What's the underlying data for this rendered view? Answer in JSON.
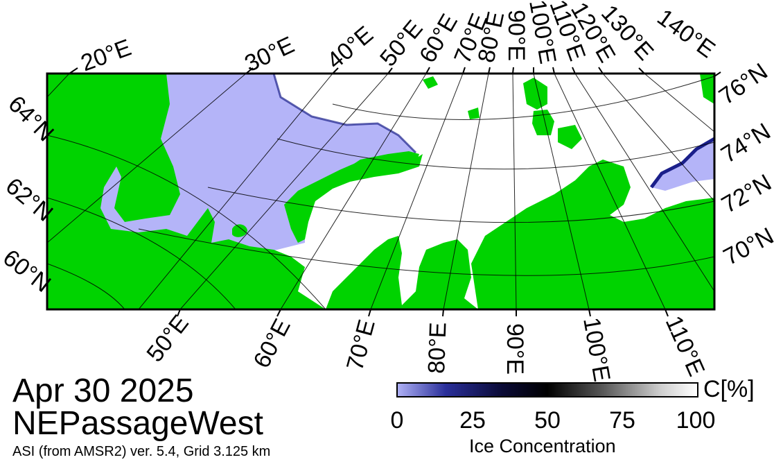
{
  "map": {
    "date": "Apr 30 2025",
    "region": "NEPassageWest",
    "product": "ASI (from AMSR2) ver. 5.4,  Grid 3.125 km",
    "colors": {
      "land": "#00d300",
      "open_water": "#b4b4f8",
      "ice": "#ffffff",
      "frame": "#000000"
    },
    "top_longitude_labels": [
      "20°E",
      "30°E",
      "40°E",
      "50°E",
      "60°E",
      "70°E",
      "80°E",
      "90°E",
      "100°E",
      "110°E",
      "120°E",
      "130°E",
      "140°E"
    ],
    "bottom_longitude_labels": [
      "50°E",
      "60°E",
      "70°E",
      "80°E",
      "90°E",
      "100°E",
      "110°E"
    ],
    "left_latitude_labels": [
      "64°N",
      "62°N",
      "60°N"
    ],
    "right_latitude_labels": [
      "76°N",
      "74°N",
      "72°N",
      "70°N"
    ]
  },
  "legend": {
    "unit": "C[%]",
    "ticks": [
      "0",
      "25",
      "50",
      "75",
      "100"
    ],
    "caption": "Ice Concentration"
  }
}
